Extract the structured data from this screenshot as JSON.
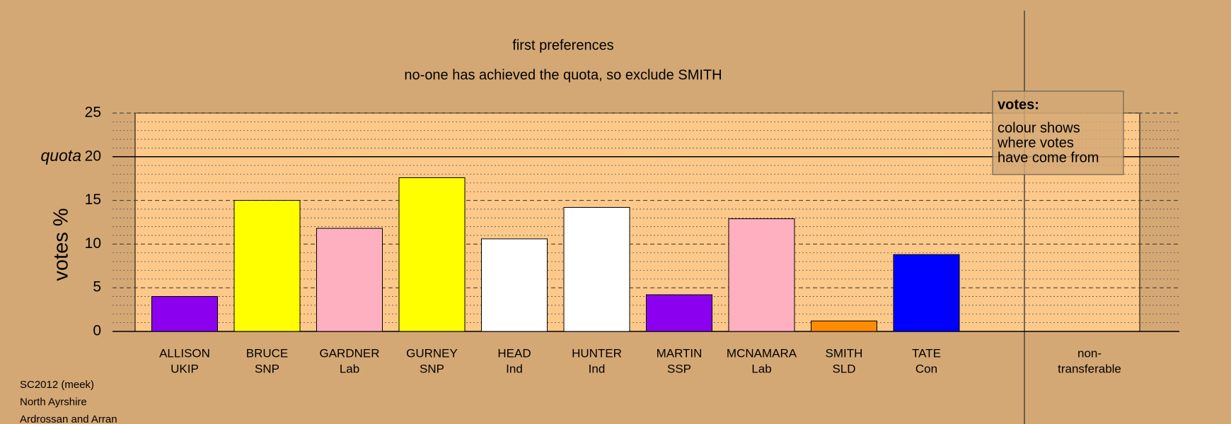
{
  "chart_data": {
    "type": "bar",
    "title": "first preferences",
    "subtitle": "no-one has achieved the quota, so exclude SMITH",
    "y_label": "votes %",
    "categories": [
      [
        "ALLISON",
        "UKIP"
      ],
      [
        "BRUCE",
        "SNP"
      ],
      [
        "GARDNER",
        "Lab"
      ],
      [
        "GURNEY",
        "SNP"
      ],
      [
        "HEAD",
        "Ind"
      ],
      [
        "HUNTER",
        "Ind"
      ],
      [
        "MARTIN",
        "SSP"
      ],
      [
        "MCNAMARA",
        "Lab"
      ],
      [
        "SMITH",
        "SLD"
      ],
      [
        "TATE",
        "Con"
      ],
      [
        "non-",
        "transferable"
      ]
    ],
    "values": [
      4.0,
      15.0,
      11.8,
      17.6,
      10.6,
      14.2,
      4.2,
      12.9,
      1.2,
      8.8,
      null
    ],
    "colors": [
      "#8b00ee",
      "#ffff00",
      "#ffb0c0",
      "#ffff00",
      "#ffffff",
      "#ffffff",
      "#8b00ee",
      "#ffb0c0",
      "#ff8c00",
      "#0000ff",
      null
    ],
    "ylim": [
      0,
      25
    ],
    "yticks": [
      0,
      5,
      10,
      15,
      20,
      25
    ],
    "minor_yticks": [
      1,
      2,
      3,
      4,
      6,
      7,
      8,
      9,
      11,
      12,
      13,
      14,
      16,
      17,
      18,
      19,
      21,
      22,
      23,
      24
    ],
    "quota": {
      "value": 20,
      "label": "quota"
    },
    "grid": true,
    "legend": {
      "title": "votes:",
      "lines": [
        "colour shows",
        "where votes",
        "have come from"
      ]
    },
    "footer": [
      "SC2012 (meek)",
      "North Ayrshire",
      "Ardrossan and Arran"
    ]
  }
}
